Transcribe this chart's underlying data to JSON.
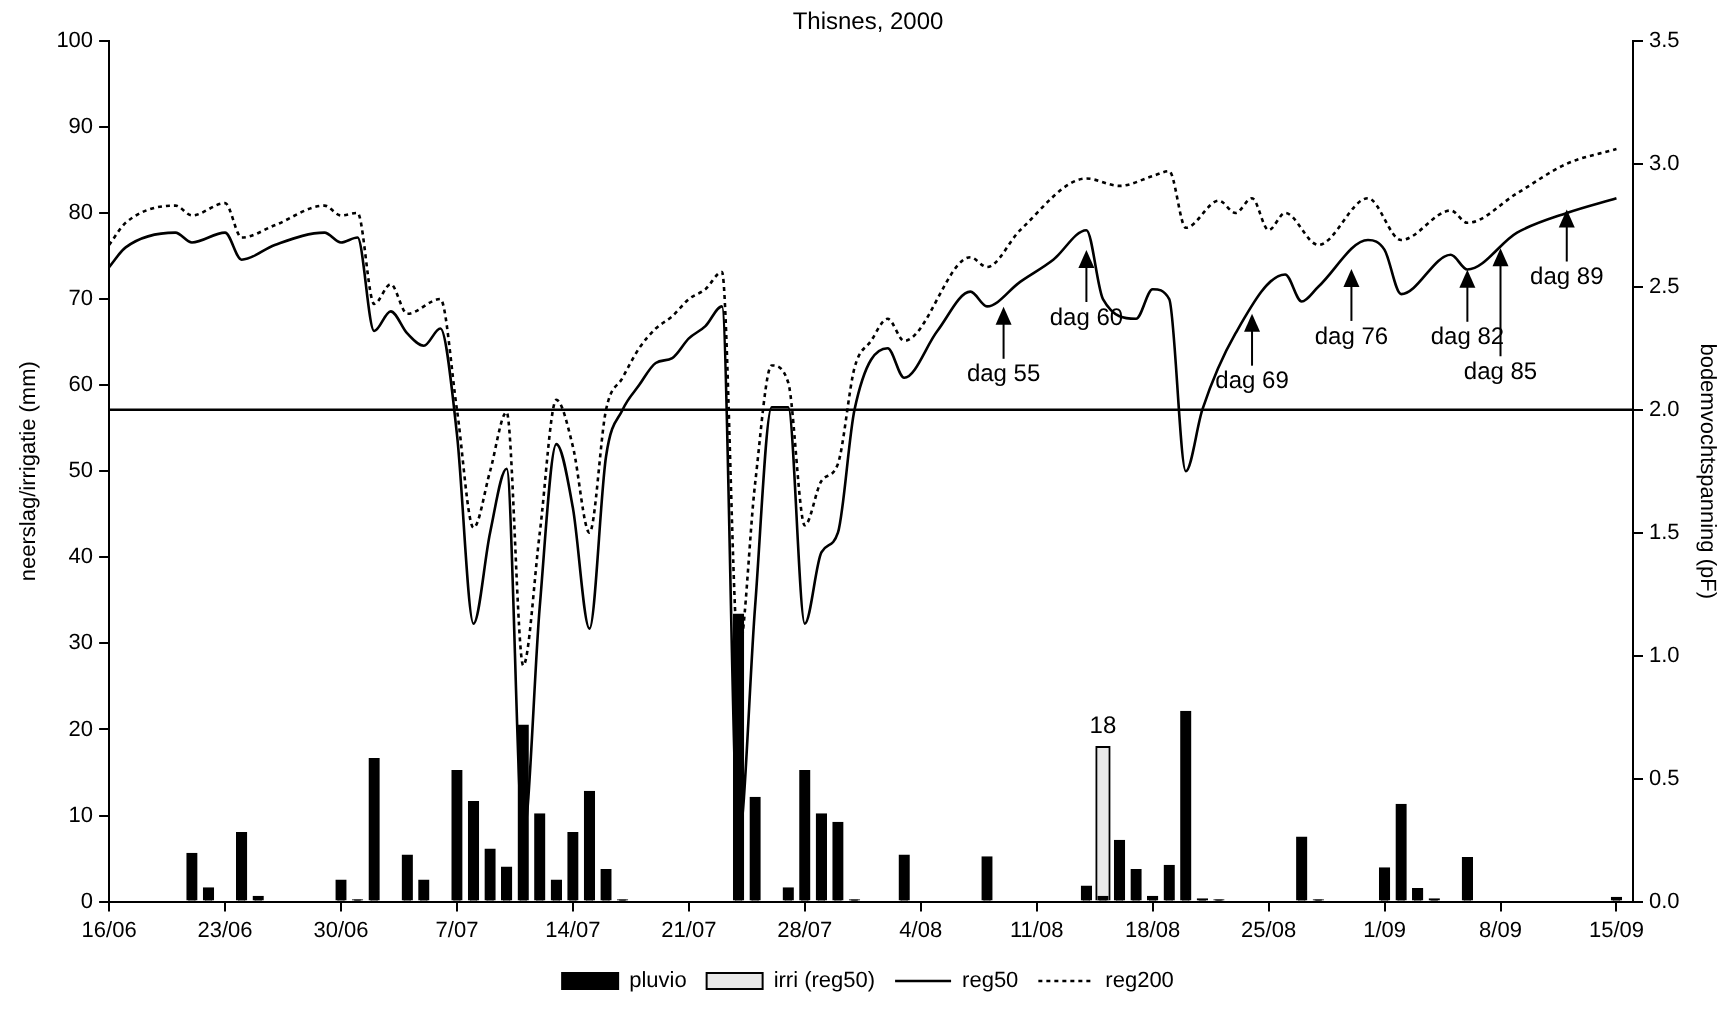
{
  "chart_data": {
    "type": "bar",
    "title": "Thisnes, 2000",
    "ylabel": "neerslag/irrigatie (mm)",
    "y2label": "bodemvochtspanning (pF)",
    "xlim": [
      "--06-16",
      "--09-16"
    ],
    "xticks": [
      {
        "value": "--06-16",
        "label": "16/06"
      },
      {
        "value": "--06-23",
        "label": "23/06"
      },
      {
        "value": "--06-30",
        "label": "30/06"
      },
      {
        "value": "--07-07",
        "label": "7/07"
      },
      {
        "value": "--07-14",
        "label": "14/07"
      },
      {
        "value": "--07-21",
        "label": "21/07"
      },
      {
        "value": "--07-28",
        "label": "28/07"
      },
      {
        "value": "--08-04",
        "label": "4/08"
      },
      {
        "value": "--08-11",
        "label": "11/08"
      },
      {
        "value": "--08-18",
        "label": "18/08"
      },
      {
        "value": "--08-25",
        "label": "25/08"
      },
      {
        "value": "--09-01",
        "label": "1/09"
      },
      {
        "value": "--09-08",
        "label": "8/09"
      },
      {
        "value": "--09-15",
        "label": "15/09"
      }
    ],
    "ylim": [
      0,
      100
    ],
    "yticks": [
      0,
      10,
      20,
      30,
      40,
      50,
      60,
      70,
      80,
      90,
      100
    ],
    "y2lim": [
      0,
      3.5
    ],
    "y2ticks": [
      {
        "value": 0,
        "label": "0.0"
      },
      {
        "value": 0.5,
        "label": "0.5"
      },
      {
        "value": 1,
        "label": "1.0"
      },
      {
        "value": 1.5,
        "label": "1.5"
      },
      {
        "value": 2,
        "label": "2.0"
      },
      {
        "value": 2.5,
        "label": "2.5"
      },
      {
        "value": 3,
        "label": "3.0"
      },
      {
        "value": 3.5,
        "label": "3.5"
      }
    ],
    "grid": false,
    "legend": "bottom",
    "ref_lines": [
      {
        "axis": "y2",
        "value": 2,
        "color": "#000000",
        "line_style": "solid"
      }
    ],
    "annotations": [
      {
        "text": "dag 55",
        "x": "--08-09",
        "y": 69.1
      },
      {
        "text": "dag 60",
        "x": "--08-14",
        "y": 75.7
      },
      {
        "text": "dag 69",
        "x": "--08-24",
        "y": 68.3
      },
      {
        "text": "dag 76",
        "x": "--08-30",
        "y": 73.5
      },
      {
        "text": "dag 82",
        "x": "--09-06",
        "y": 73.4
      },
      {
        "text": "dag 85",
        "x": "--09-08",
        "y": 75.9
      },
      {
        "text": "dag 89",
        "x": "--09-12",
        "y": 80.4
      }
    ],
    "series": [
      {
        "name": "pluvio",
        "color": "#000000",
        "x": [
          "--06-21",
          "--06-22",
          "--06-24",
          "--06-25",
          "--06-30",
          "--07-01",
          "--07-02",
          "--07-04",
          "--07-05",
          "--07-07",
          "--07-08",
          "--07-09",
          "--07-10",
          "--07-11",
          "--07-12",
          "--07-13",
          "--07-14",
          "--07-15",
          "--07-16",
          "--07-17",
          "--07-24",
          "--07-25",
          "--07-27",
          "--07-28",
          "--07-29",
          "--07-30",
          "--07-31",
          "--08-03",
          "--08-08",
          "--08-14",
          "--08-15",
          "--08-16",
          "--08-17",
          "--08-18",
          "--08-19",
          "--08-20",
          "--08-21",
          "--08-22",
          "--08-27",
          "--08-28",
          "--09-01",
          "--09-02",
          "--09-03",
          "--09-04",
          "--09-06",
          "--09-15"
        ],
        "values": [
          5.6,
          1.6,
          8.0,
          0.6,
          2.5,
          0.2,
          16.6,
          5.4,
          2.5,
          15.2,
          11.6,
          6.1,
          4.0,
          20.5,
          10.2,
          2.5,
          8.0,
          12.8,
          3.7,
          0.2,
          33.4,
          12.1,
          1.6,
          15.2,
          10.2,
          9.2,
          0.2,
          5.4,
          5.2,
          1.8,
          0.6,
          7.1,
          3.7,
          0.6,
          4.2,
          22.1,
          0.3,
          0.2,
          7.5,
          0.2,
          3.9,
          11.3,
          1.5,
          0.3,
          5.1,
          0.5
        ]
      },
      {
        "name": "irri (reg50)",
        "color": "#e8e8e8",
        "x": [
          "--08-15"
        ],
        "values": [
          18
        ],
        "value_labels": [
          "18"
        ]
      },
      {
        "name": "reg50",
        "type": "line",
        "axis": "y2",
        "color": "#000000",
        "line_style": "solid",
        "x": [
          "--06-16",
          "--06-17",
          "--06-20",
          "--06-21",
          "--06-23",
          "--06-24",
          "--06-26",
          "--06-29",
          "--06-30",
          "--07-01",
          "--07-02",
          "--07-03",
          "--07-04",
          "--07-05",
          "--07-06",
          "--07-07",
          "--07-08",
          "--07-09",
          "--07-10",
          "--07-11",
          "--07-12",
          "--07-13",
          "--07-14",
          "--07-15",
          "--07-16",
          "--07-17",
          "--07-18",
          "--07-19",
          "--07-20",
          "--07-21",
          "--07-22",
          "--07-23",
          "--07-24",
          "--07-25",
          "--07-26",
          "--07-27",
          "--07-28",
          "--07-29",
          "--07-30",
          "--07-31",
          "--08-02",
          "--08-03",
          "--08-05",
          "--08-07",
          "--08-08",
          "--08-10",
          "--08-12",
          "--08-14",
          "--08-15",
          "--08-17",
          "--08-18",
          "--08-19",
          "--08-20",
          "--08-21",
          "--08-23",
          "--08-26",
          "--08-27",
          "--08-28",
          "--08-31",
          "--09-01",
          "--09-02",
          "--09-05",
          "--09-06",
          "--09-09",
          "--09-12",
          "--09-15"
        ],
        "values": [
          2.58,
          2.66,
          2.72,
          2.68,
          2.72,
          2.61,
          2.67,
          2.72,
          2.68,
          2.7,
          2.32,
          2.4,
          2.31,
          2.26,
          2.33,
          1.9,
          1.13,
          1.5,
          1.76,
          0.26,
          1.2,
          1.86,
          1.6,
          1.11,
          1.81,
          2.0,
          2.1,
          2.19,
          2.21,
          2.29,
          2.34,
          2.42,
          0.25,
          1.2,
          2.01,
          2.01,
          1.13,
          1.42,
          1.5,
          2.0,
          2.25,
          2.13,
          2.32,
          2.48,
          2.42,
          2.52,
          2.61,
          2.73,
          2.45,
          2.37,
          2.49,
          2.45,
          1.75,
          2.0,
          2.31,
          2.55,
          2.44,
          2.5,
          2.69,
          2.65,
          2.47,
          2.63,
          2.57,
          2.72,
          2.8,
          2.86
        ]
      },
      {
        "name": "reg200",
        "type": "line",
        "axis": "y2",
        "color": "#000000",
        "line_style": "dotted",
        "x": [
          "--06-16",
          "--06-17",
          "--06-20",
          "--06-21",
          "--06-23",
          "--06-24",
          "--06-26",
          "--06-29",
          "--06-30",
          "--07-01",
          "--07-02",
          "--07-03",
          "--07-04",
          "--07-06",
          "--07-07",
          "--07-08",
          "--07-09",
          "--07-10",
          "--07-11",
          "--07-12",
          "--07-13",
          "--07-14",
          "--07-15",
          "--07-16",
          "--07-17",
          "--07-18",
          "--07-19",
          "--07-20",
          "--07-21",
          "--07-22",
          "--07-23",
          "--07-24",
          "--07-25",
          "--07-26",
          "--07-27",
          "--07-28",
          "--07-29",
          "--07-30",
          "--07-31",
          "--08-01",
          "--08-02",
          "--08-03",
          "--08-07",
          "--08-08",
          "--08-10",
          "--08-14",
          "--08-16",
          "--08-18",
          "--08-19",
          "--08-20",
          "--08-22",
          "--08-23",
          "--08-24",
          "--08-25",
          "--08-26",
          "--08-28",
          "--08-31",
          "--09-02",
          "--09-05",
          "--09-06",
          "--09-09",
          "--09-12",
          "--09-15"
        ],
        "values": [
          2.67,
          2.76,
          2.83,
          2.79,
          2.84,
          2.7,
          2.75,
          2.83,
          2.79,
          2.8,
          2.43,
          2.51,
          2.39,
          2.45,
          2.0,
          1.52,
          1.75,
          1.99,
          0.96,
          1.5,
          2.04,
          1.85,
          1.5,
          2.0,
          2.13,
          2.25,
          2.33,
          2.38,
          2.45,
          2.49,
          2.56,
          1.01,
          1.7,
          2.18,
          2.11,
          1.53,
          1.71,
          1.78,
          2.17,
          2.28,
          2.37,
          2.28,
          2.62,
          2.58,
          2.73,
          2.94,
          2.91,
          2.95,
          2.97,
          2.74,
          2.85,
          2.8,
          2.86,
          2.73,
          2.8,
          2.67,
          2.86,
          2.69,
          2.81,
          2.76,
          2.88,
          3.0,
          3.06
        ]
      }
    ]
  }
}
